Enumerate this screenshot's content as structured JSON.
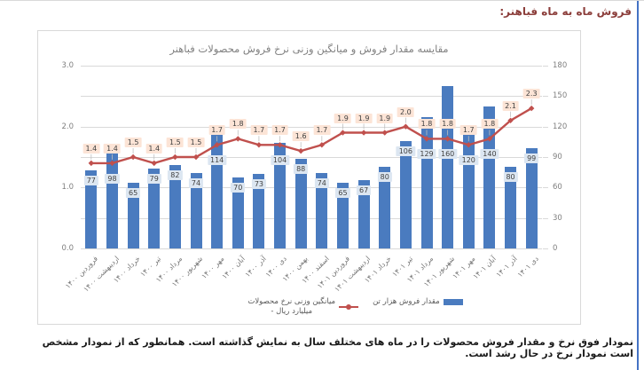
{
  "page": {
    "heading": "فروش ماه به ماه فباهنر:",
    "caption": "نمودار فوق نرخ و مقدار فروش محصولات را در ماه های مختلف سال به نمایش گذاشته است.  همانطور که از نمودار مشخص است نمودار نرخ در حال رشد است."
  },
  "legend": {
    "bar_label": "مقدار فروش هزار تن",
    "line_label_line1": "میانگین وزنی نرخ محصولات",
    "line_label_line2": "- میلیارد ریال"
  },
  "colors": {
    "bar": "#4a7bbf",
    "line": "#c0504d",
    "bar_label_bg": "#dce6f1",
    "line_label_bg": "#fce4d6",
    "label_text": "#404040",
    "heading": "#8b3d3a",
    "axis_text": "#7f7f7f",
    "grid": "#d9d9d9",
    "leader": "#bfbfbf",
    "right_edge_line": "#4472c4"
  },
  "chart_data": {
    "type": "bar",
    "subtype": "combo bar + line, dual axis",
    "title": "مقایسه مقدار فروش و میانگین وزنی نرخ فروش محصولات فباهنر",
    "categories": [
      "فروردین ۱۴۰۰",
      "اردیبهشت ۱۴۰۰",
      "خرداد ۱۴۰۰",
      "تیر ۱۴۰۰",
      "مرداد ۱۴۰۰",
      "شهریور ۱۴۰۰",
      "مهر ۱۴۰۰",
      "آبان ۱۴۰۰",
      "آذر ۱۴۰۰",
      "دی ۱۴۰۰",
      "بهمن ۱۴۰۰",
      "اسفند ۱۴۰۰",
      "فروردین ۱۴۰۱",
      "اردیبهشت ۱۴۰۱",
      "خرداد ۱۴۰۱",
      "تیر ۱۴۰۱",
      "مرداد ۱۴۰۱",
      "شهریور ۱۴۰۱",
      "مهر ۱۴۰۱",
      "آبان ۱۴۰۱",
      "آذر ۱۴۰۱",
      "دی ۱۴۰۱"
    ],
    "series": [
      {
        "name": "مقدار فروش هزار تن",
        "type": "bar",
        "axis": "right",
        "values": [
          77,
          98,
          65,
          79,
          82,
          74,
          114,
          70,
          73,
          104,
          88,
          74,
          65,
          67,
          80,
          106,
          129,
          160,
          120,
          140,
          80,
          99
        ]
      },
      {
        "name": "میانگین وزنی نرخ محصولات - میلیارد ریال",
        "type": "line",
        "axis": "left",
        "values": [
          1.4,
          1.4,
          1.5,
          1.4,
          1.5,
          1.5,
          1.7,
          1.8,
          1.7,
          1.7,
          1.6,
          1.7,
          1.9,
          1.9,
          1.9,
          2.0,
          1.8,
          1.8,
          1.7,
          1.8,
          2.1,
          2.3
        ]
      }
    ],
    "left_axis": {
      "min": 0,
      "max": 3,
      "labeled_ticks": [
        "3.0",
        "2.0",
        "1.0",
        "0.0"
      ],
      "gridline_step": 0.5
    },
    "right_axis": {
      "min": 0,
      "max": 180,
      "labeled_ticks": [
        "180",
        "150",
        "120",
        "90",
        "60",
        "30",
        "0"
      ]
    },
    "grid": true,
    "legend_position": "bottom",
    "data_labels": true
  }
}
